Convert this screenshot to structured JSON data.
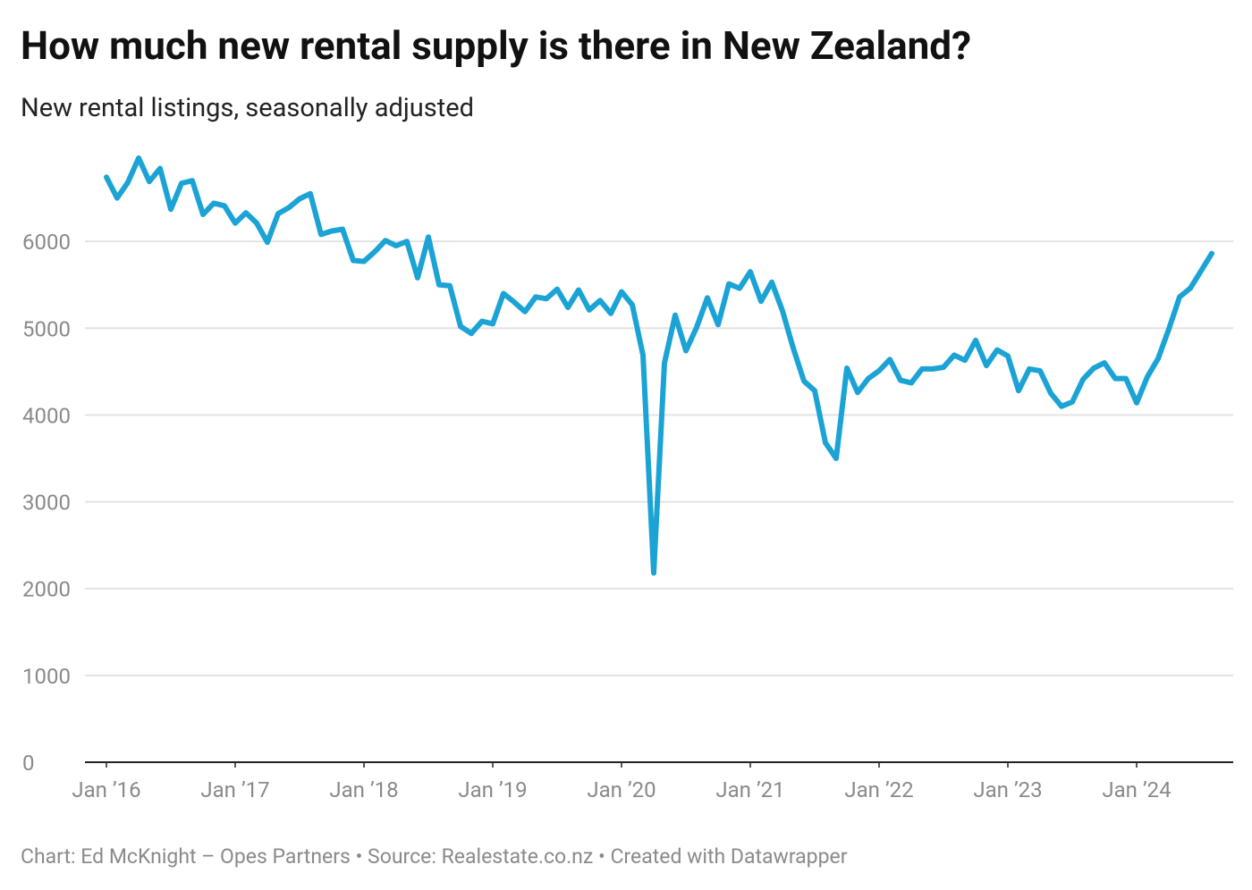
{
  "chart_data": {
    "type": "line",
    "title": "How much new rental supply is there in New Zealand?",
    "subtitle": "New rental listings, seasonally adjusted",
    "footer": "Chart: Ed McKnight – Opes Partners • Source: Realestate.co.nz • Created with Datawrapper",
    "x": [
      "2016-01",
      "2016-02",
      "2016-03",
      "2016-04",
      "2016-05",
      "2016-06",
      "2016-07",
      "2016-08",
      "2016-09",
      "2016-10",
      "2016-11",
      "2016-12",
      "2017-01",
      "2017-02",
      "2017-03",
      "2017-04",
      "2017-05",
      "2017-06",
      "2017-07",
      "2017-08",
      "2017-09",
      "2017-10",
      "2017-11",
      "2017-12",
      "2018-01",
      "2018-02",
      "2018-03",
      "2018-04",
      "2018-05",
      "2018-06",
      "2018-07",
      "2018-08",
      "2018-09",
      "2018-10",
      "2018-11",
      "2018-12",
      "2019-01",
      "2019-02",
      "2019-03",
      "2019-04",
      "2019-05",
      "2019-06",
      "2019-07",
      "2019-08",
      "2019-09",
      "2019-10",
      "2019-11",
      "2019-12",
      "2020-01",
      "2020-02",
      "2020-03",
      "2020-04",
      "2020-05",
      "2020-06",
      "2020-07",
      "2020-08",
      "2020-09",
      "2020-10",
      "2020-11",
      "2020-12",
      "2021-01",
      "2021-02",
      "2021-03",
      "2021-04",
      "2021-05",
      "2021-06",
      "2021-07",
      "2021-08",
      "2021-09",
      "2021-10",
      "2021-11",
      "2021-12",
      "2022-01",
      "2022-02",
      "2022-03",
      "2022-04",
      "2022-05",
      "2022-06",
      "2022-07",
      "2022-08",
      "2022-09",
      "2022-10",
      "2022-11",
      "2022-12",
      "2023-01",
      "2023-02",
      "2023-03",
      "2023-04",
      "2023-05",
      "2023-06",
      "2023-07",
      "2023-08",
      "2023-09",
      "2023-10",
      "2023-11",
      "2023-12",
      "2024-01",
      "2024-02",
      "2024-03",
      "2024-04",
      "2024-05",
      "2024-06",
      "2024-07",
      "2024-08"
    ],
    "series": [
      {
        "name": "New rental listings",
        "color": "#1ba3d6",
        "values": [
          6740,
          6500,
          6680,
          6960,
          6690,
          6840,
          6370,
          6670,
          6700,
          6310,
          6440,
          6410,
          6210,
          6330,
          6210,
          5990,
          6320,
          6390,
          6490,
          6550,
          6080,
          6120,
          6140,
          5780,
          5770,
          5880,
          6010,
          5950,
          6000,
          5580,
          6050,
          5500,
          5490,
          5020,
          4940,
          5080,
          5050,
          5400,
          5300,
          5190,
          5360,
          5340,
          5450,
          5240,
          5440,
          5210,
          5320,
          5170,
          5420,
          5270,
          4690,
          2180,
          4600,
          5150,
          4740,
          5010,
          5350,
          5040,
          5510,
          5460,
          5650,
          5310,
          5530,
          5200,
          4770,
          4390,
          4280,
          3680,
          3500,
          4540,
          4260,
          4420,
          4510,
          4640,
          4400,
          4370,
          4530,
          4530,
          4550,
          4690,
          4630,
          4860,
          4570,
          4750,
          4680,
          4280,
          4530,
          4510,
          4250,
          4100,
          4150,
          4410,
          4540,
          4600,
          4420,
          4420,
          4140,
          4440,
          4650,
          4990,
          5360,
          5460,
          5660,
          5860
        ]
      }
    ],
    "xlim": [
      "2015-11",
      "2024-10"
    ],
    "xticks": [
      {
        "value": "2016-01",
        "label": "Jan ’16"
      },
      {
        "value": "2017-01",
        "label": "Jan ’17"
      },
      {
        "value": "2018-01",
        "label": "Jan ’18"
      },
      {
        "value": "2019-01",
        "label": "Jan ’19"
      },
      {
        "value": "2020-01",
        "label": "Jan ’20"
      },
      {
        "value": "2021-01",
        "label": "Jan ’21"
      },
      {
        "value": "2022-01",
        "label": "Jan ’22"
      },
      {
        "value": "2023-01",
        "label": "Jan ’23"
      },
      {
        "value": "2024-01",
        "label": "Jan ’24"
      }
    ],
    "ylim": [
      0,
      7000
    ],
    "yticks": [
      0,
      1000,
      2000,
      3000,
      4000,
      5000,
      6000
    ],
    "grid": true
  }
}
